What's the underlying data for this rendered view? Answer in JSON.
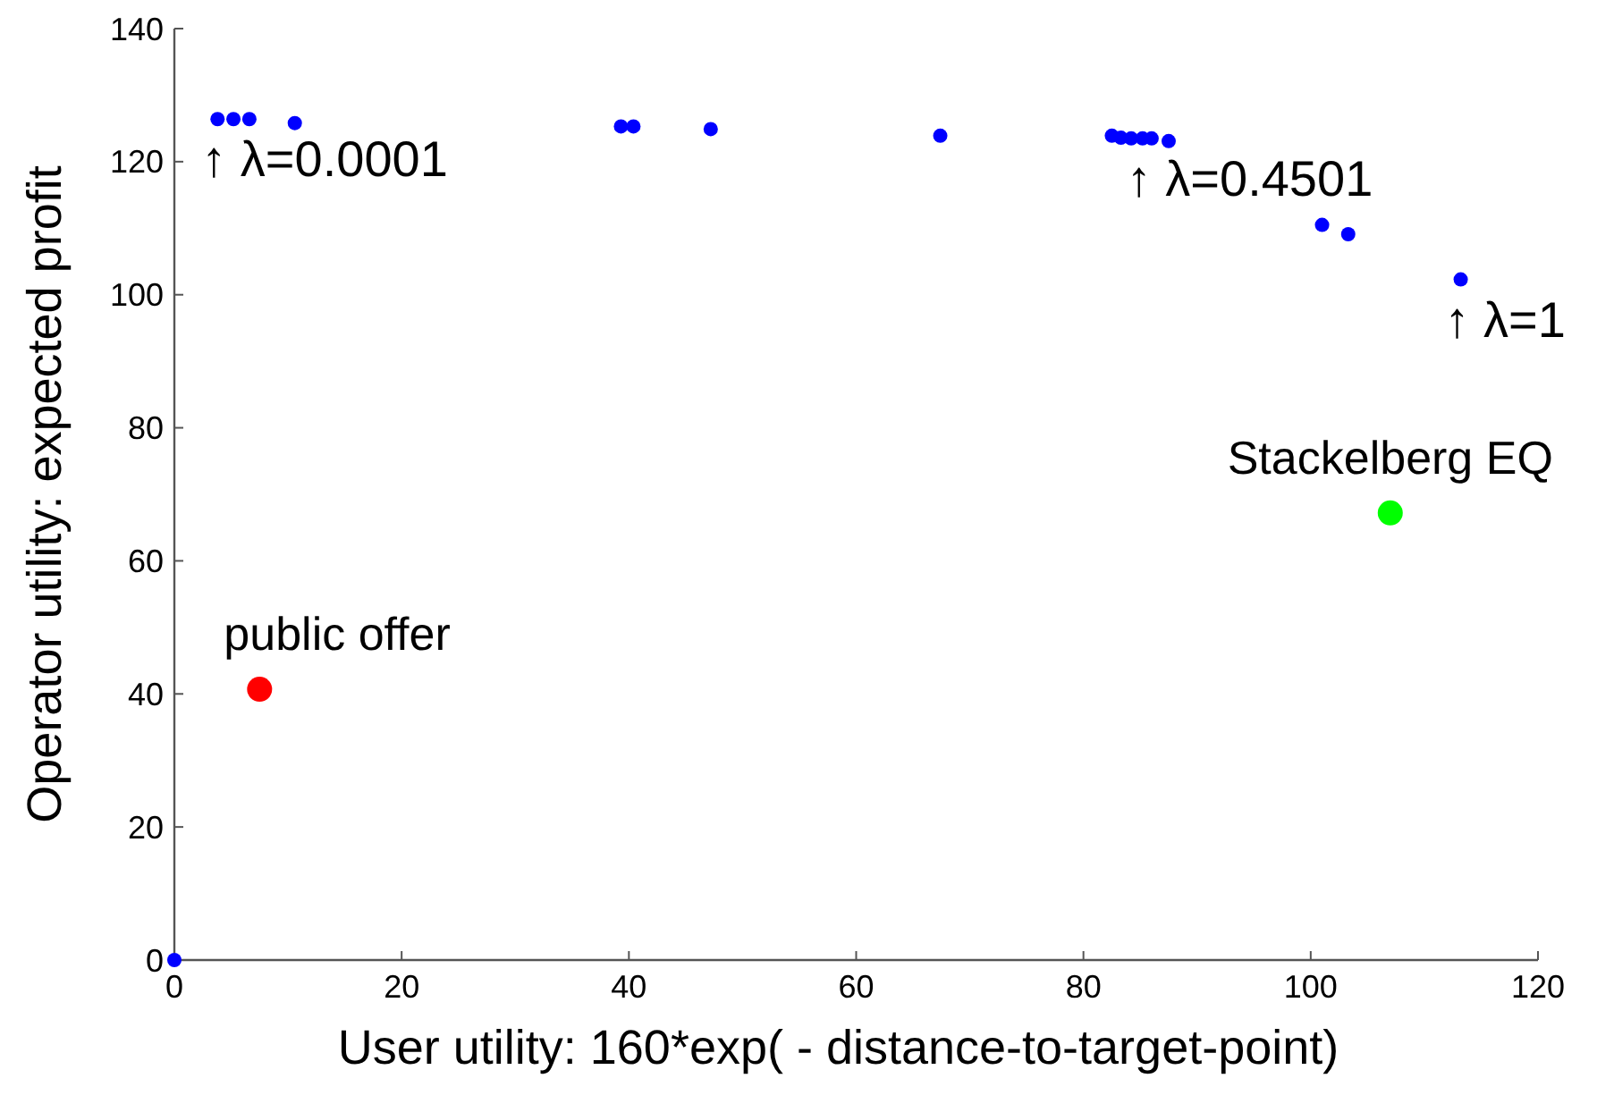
{
  "chart_data": {
    "type": "scatter",
    "xlabel": "User utility: 160*exp( - distance-to-target-point)",
    "ylabel": "Operator utility: expected profit",
    "xlim": [
      0,
      120
    ],
    "xticks": [
      0,
      20,
      40,
      60,
      80,
      100,
      120
    ],
    "ylim": [
      0,
      140
    ],
    "yticks": [
      0,
      20,
      40,
      60,
      80,
      100,
      120,
      140
    ],
    "grid": false,
    "marker": "circle",
    "series": [
      {
        "color": "#0000ff",
        "x": [
          0,
          3.8,
          5.2,
          6.6,
          10.6,
          39.3,
          40.4,
          47.2,
          67.4,
          82.5,
          83.3,
          84.2,
          85.2,
          86,
          87.5,
          101,
          103.3,
          113.2
        ],
        "values": [
          0,
          126.4,
          126.4,
          126.4,
          125.8,
          125.3,
          125.3,
          124.9,
          123.9,
          123.9,
          123.6,
          123.5,
          123.5,
          123.5,
          123.1,
          110.5,
          109.1,
          102.3
        ]
      },
      {
        "name": "public offer",
        "color": "#ff0000",
        "x": [
          7.5
        ],
        "values": [
          40.7
        ]
      },
      {
        "name": "Stackelberg EQ",
        "color": "#00ff00",
        "x": [
          107
        ],
        "values": [
          67.2
        ]
      }
    ],
    "annotations": [
      {
        "text": "↑ λ=0.0001",
        "x": 3.8,
        "y": 126.4
      },
      {
        "text": "↑ λ=0.4501",
        "x": 85.2,
        "y": 123.5
      },
      {
        "text": "↑ λ=1",
        "x": 113.2,
        "y": 102.3
      }
    ]
  }
}
